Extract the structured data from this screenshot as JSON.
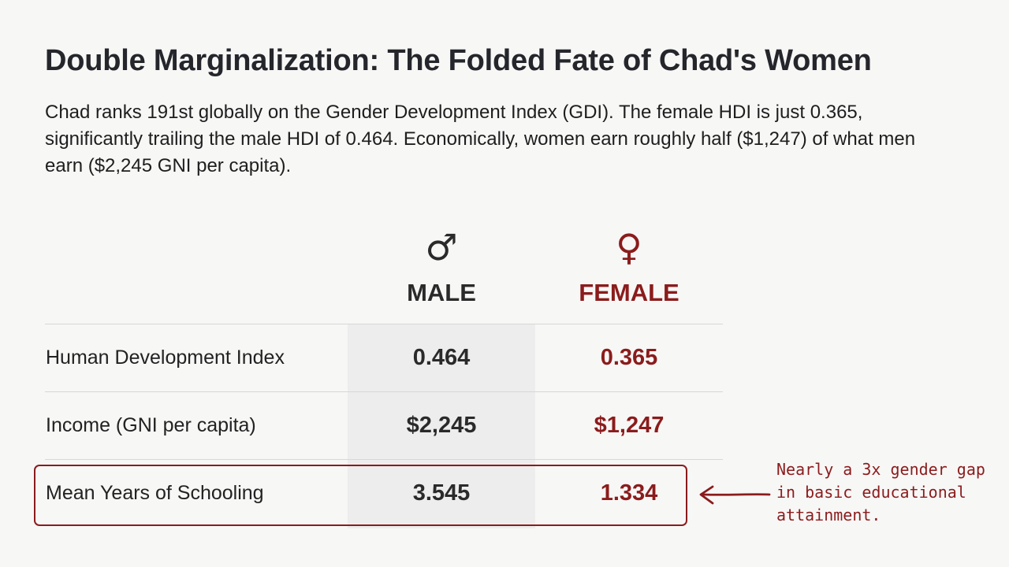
{
  "title": "Double Marginalization: The Folded Fate of Chad's Women",
  "intro": "Chad ranks 191st globally on the Gender Development Index (GDI). The female HDI is just 0.365, significantly trailing the male HDI of 0.464. Economically, women earn roughly half ($1,247) of what men earn ($2,245 GNI per capita).",
  "table": {
    "columns": [
      {
        "label": "MALE",
        "symbol": "♂",
        "icon": "male-symbol-icon",
        "color": "#2a2a2a"
      },
      {
        "label": "FEMALE",
        "symbol": "♀",
        "icon": "female-symbol-icon",
        "color": "#8b1c1c"
      }
    ],
    "rows": [
      {
        "label": "Human Development Index",
        "male": "0.464",
        "female": "0.365"
      },
      {
        "label": "Income (GNI per capita)",
        "male": "$2,245",
        "female": "$1,247"
      },
      {
        "label": "Mean Years of Schooling",
        "male": "3.545",
        "female": "1.334"
      }
    ]
  },
  "annotation": {
    "text": "Nearly a 3x gender gap in basic educational attainment.",
    "icon": "left-arrow-icon"
  },
  "colors": {
    "accent": "#8b1c1c",
    "text": "#202020",
    "background": "#f7f7f6",
    "column_shade": "#ededed"
  }
}
